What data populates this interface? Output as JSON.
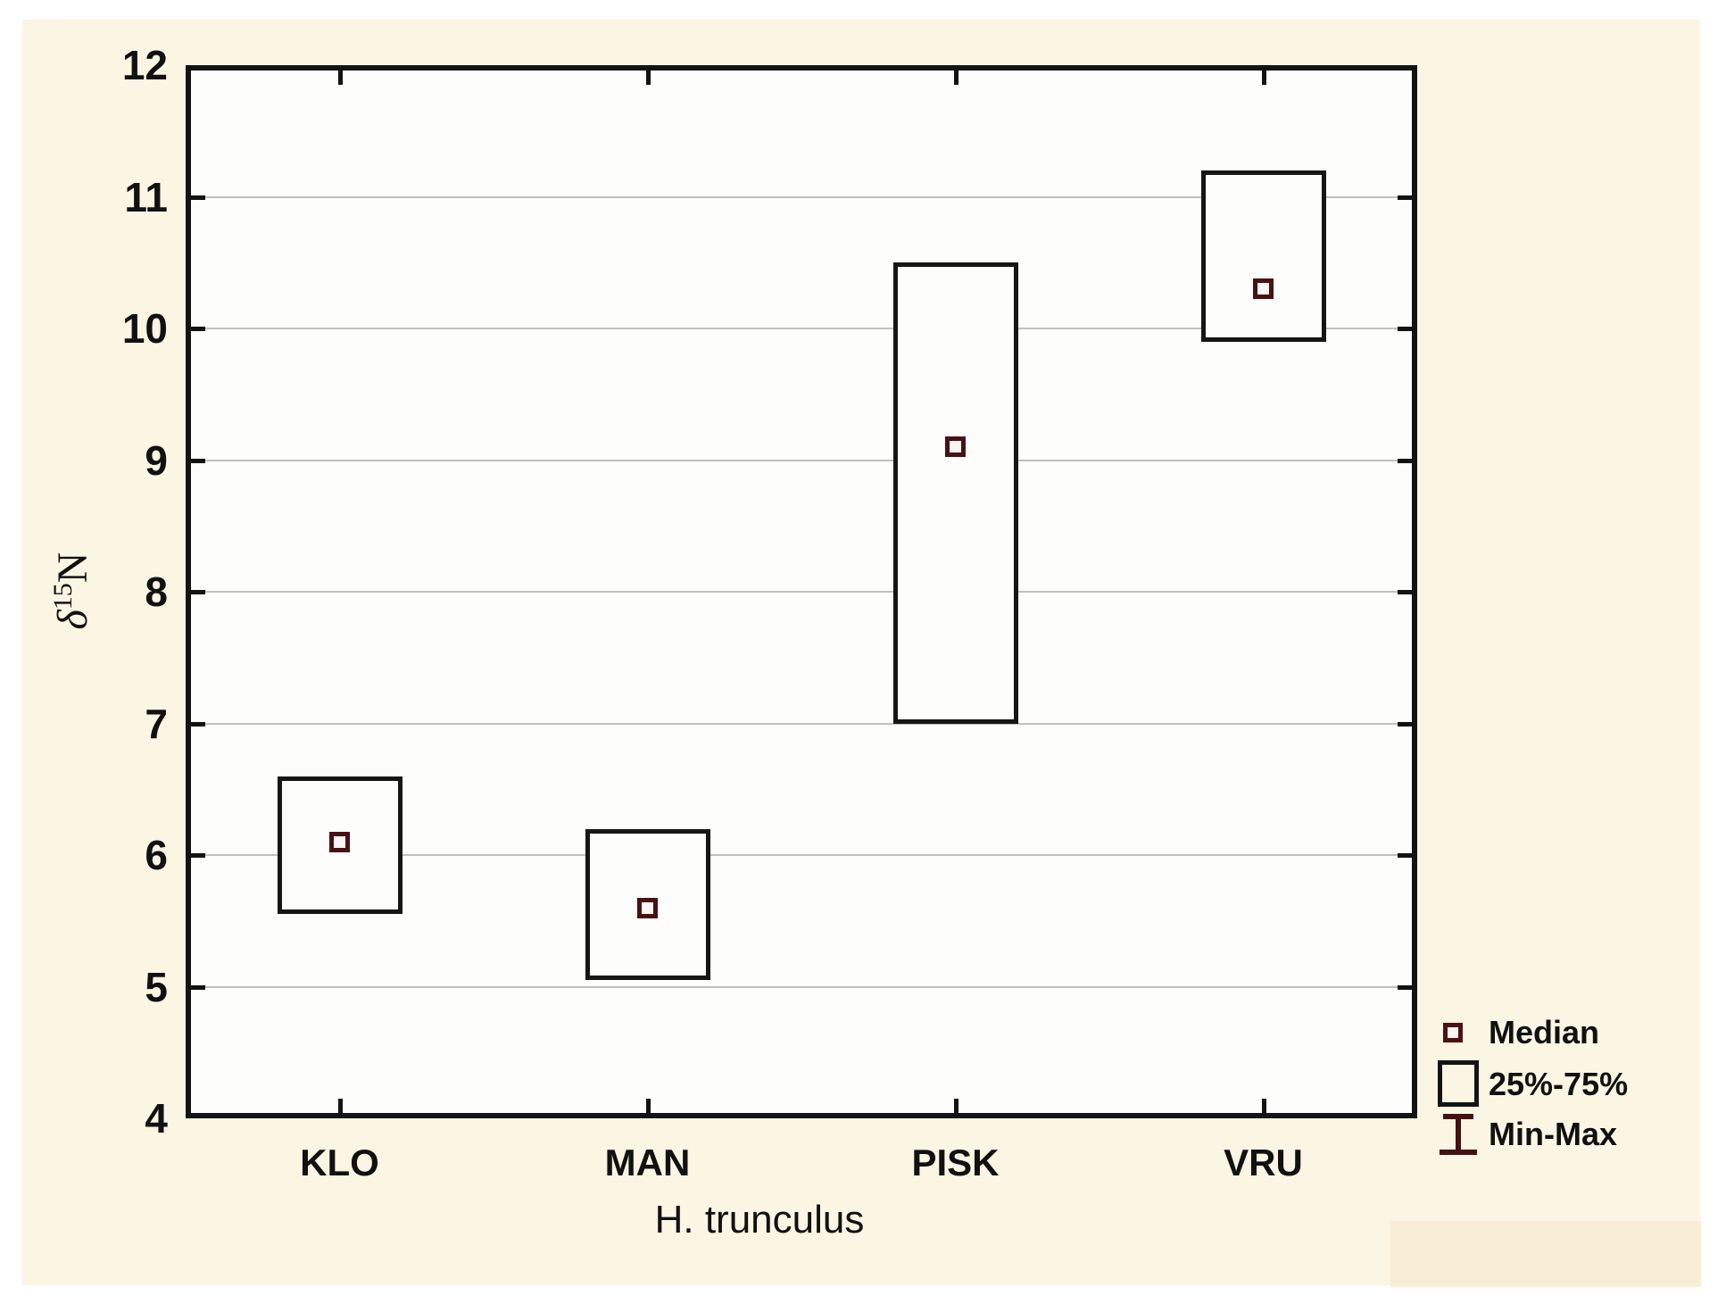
{
  "chart_data": {
    "type": "box",
    "title": "",
    "xlabel": "H. trunculus",
    "ylabel": {
      "delta": "δ",
      "sup": "15",
      "main": "N"
    },
    "ylim": [
      4,
      12
    ],
    "yticks": [
      4,
      5,
      6,
      7,
      8,
      9,
      10,
      11,
      12
    ],
    "grid": "horizontal-light-gray",
    "legend_position": "bottom-right",
    "categories": [
      "KLO",
      "MAN",
      "PISK",
      "VRU"
    ],
    "series": [
      {
        "category": "KLO",
        "median": 6.1,
        "q1": 5.55,
        "q3": 6.6
      },
      {
        "category": "MAN",
        "median": 5.6,
        "q1": 5.05,
        "q3": 6.2
      },
      {
        "category": "PISK",
        "median": 9.1,
        "q1": 7.0,
        "q3": 10.5
      },
      {
        "category": "VRU",
        "median": 10.3,
        "q1": 9.9,
        "q3": 11.2
      }
    ]
  },
  "legend": {
    "items": [
      {
        "icon": "median-square-icon",
        "label": "Median"
      },
      {
        "icon": "iqr-box-icon",
        "label": "25%-75%"
      },
      {
        "icon": "minmax-whisker-icon",
        "label": "Min-Max"
      }
    ]
  },
  "colors": {
    "canvas_bg": "#fbf5e3",
    "plot_bg": "#fdfdfb",
    "frame": "#131313",
    "gridline": "#bfbfbf",
    "box_border": "#161616",
    "median_border": "#491114",
    "median_fill": "#fcf4f1",
    "text": "#111111",
    "corner_patch": "#f8eed5"
  }
}
